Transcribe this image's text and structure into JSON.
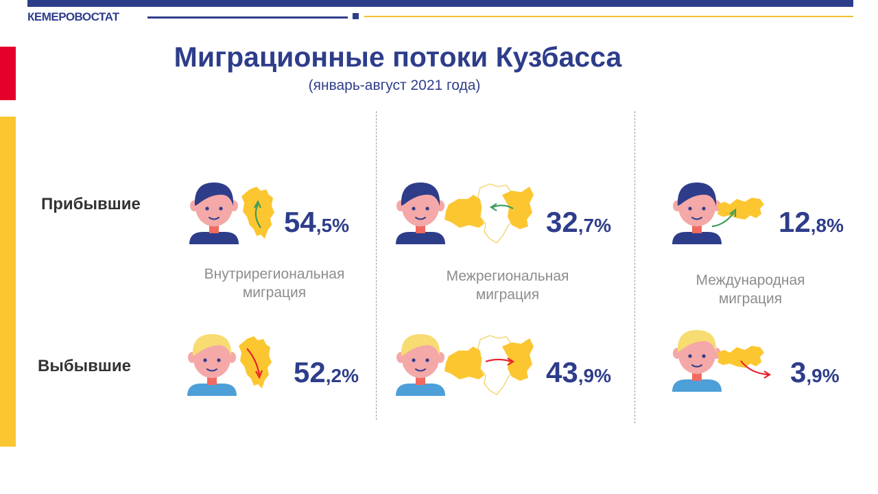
{
  "header": {
    "brand": "КЕМЕРОВОСТАТ",
    "title": "Миграционные потоки Кузбасса",
    "subtitle": "(январь-август 2021 года)"
  },
  "rows": {
    "arrived": "Прибывшие",
    "departed": "Выбывшие"
  },
  "categories": [
    {
      "line1": "Внутрирегиональная",
      "line2": "миграция",
      "arrived": {
        "int": "54",
        "frac": ",5%"
      },
      "departed": {
        "int": "52",
        "frac": ",2%"
      },
      "map": "kuzbass-map"
    },
    {
      "line1": "Межрегиональная",
      "line2": "миграция",
      "arrived": {
        "int": "32",
        "frac": ",7%"
      },
      "departed": {
        "int": "43",
        "frac": ",9%"
      },
      "map": "siberia-map"
    },
    {
      "line1": "Международная",
      "line2": "миграция",
      "arrived": {
        "int": "12",
        "frac": ",8%"
      },
      "departed": {
        "int": "3",
        "frac": ",9%"
      },
      "map": "russia-map"
    }
  ],
  "colors": {
    "brand_blue": "#2e3d8a",
    "accent_yellow": "#fcc631",
    "accent_red": "#e4002b",
    "arrival_arrow": "#3a9a5b",
    "departure_arrow": "#e8202a"
  }
}
